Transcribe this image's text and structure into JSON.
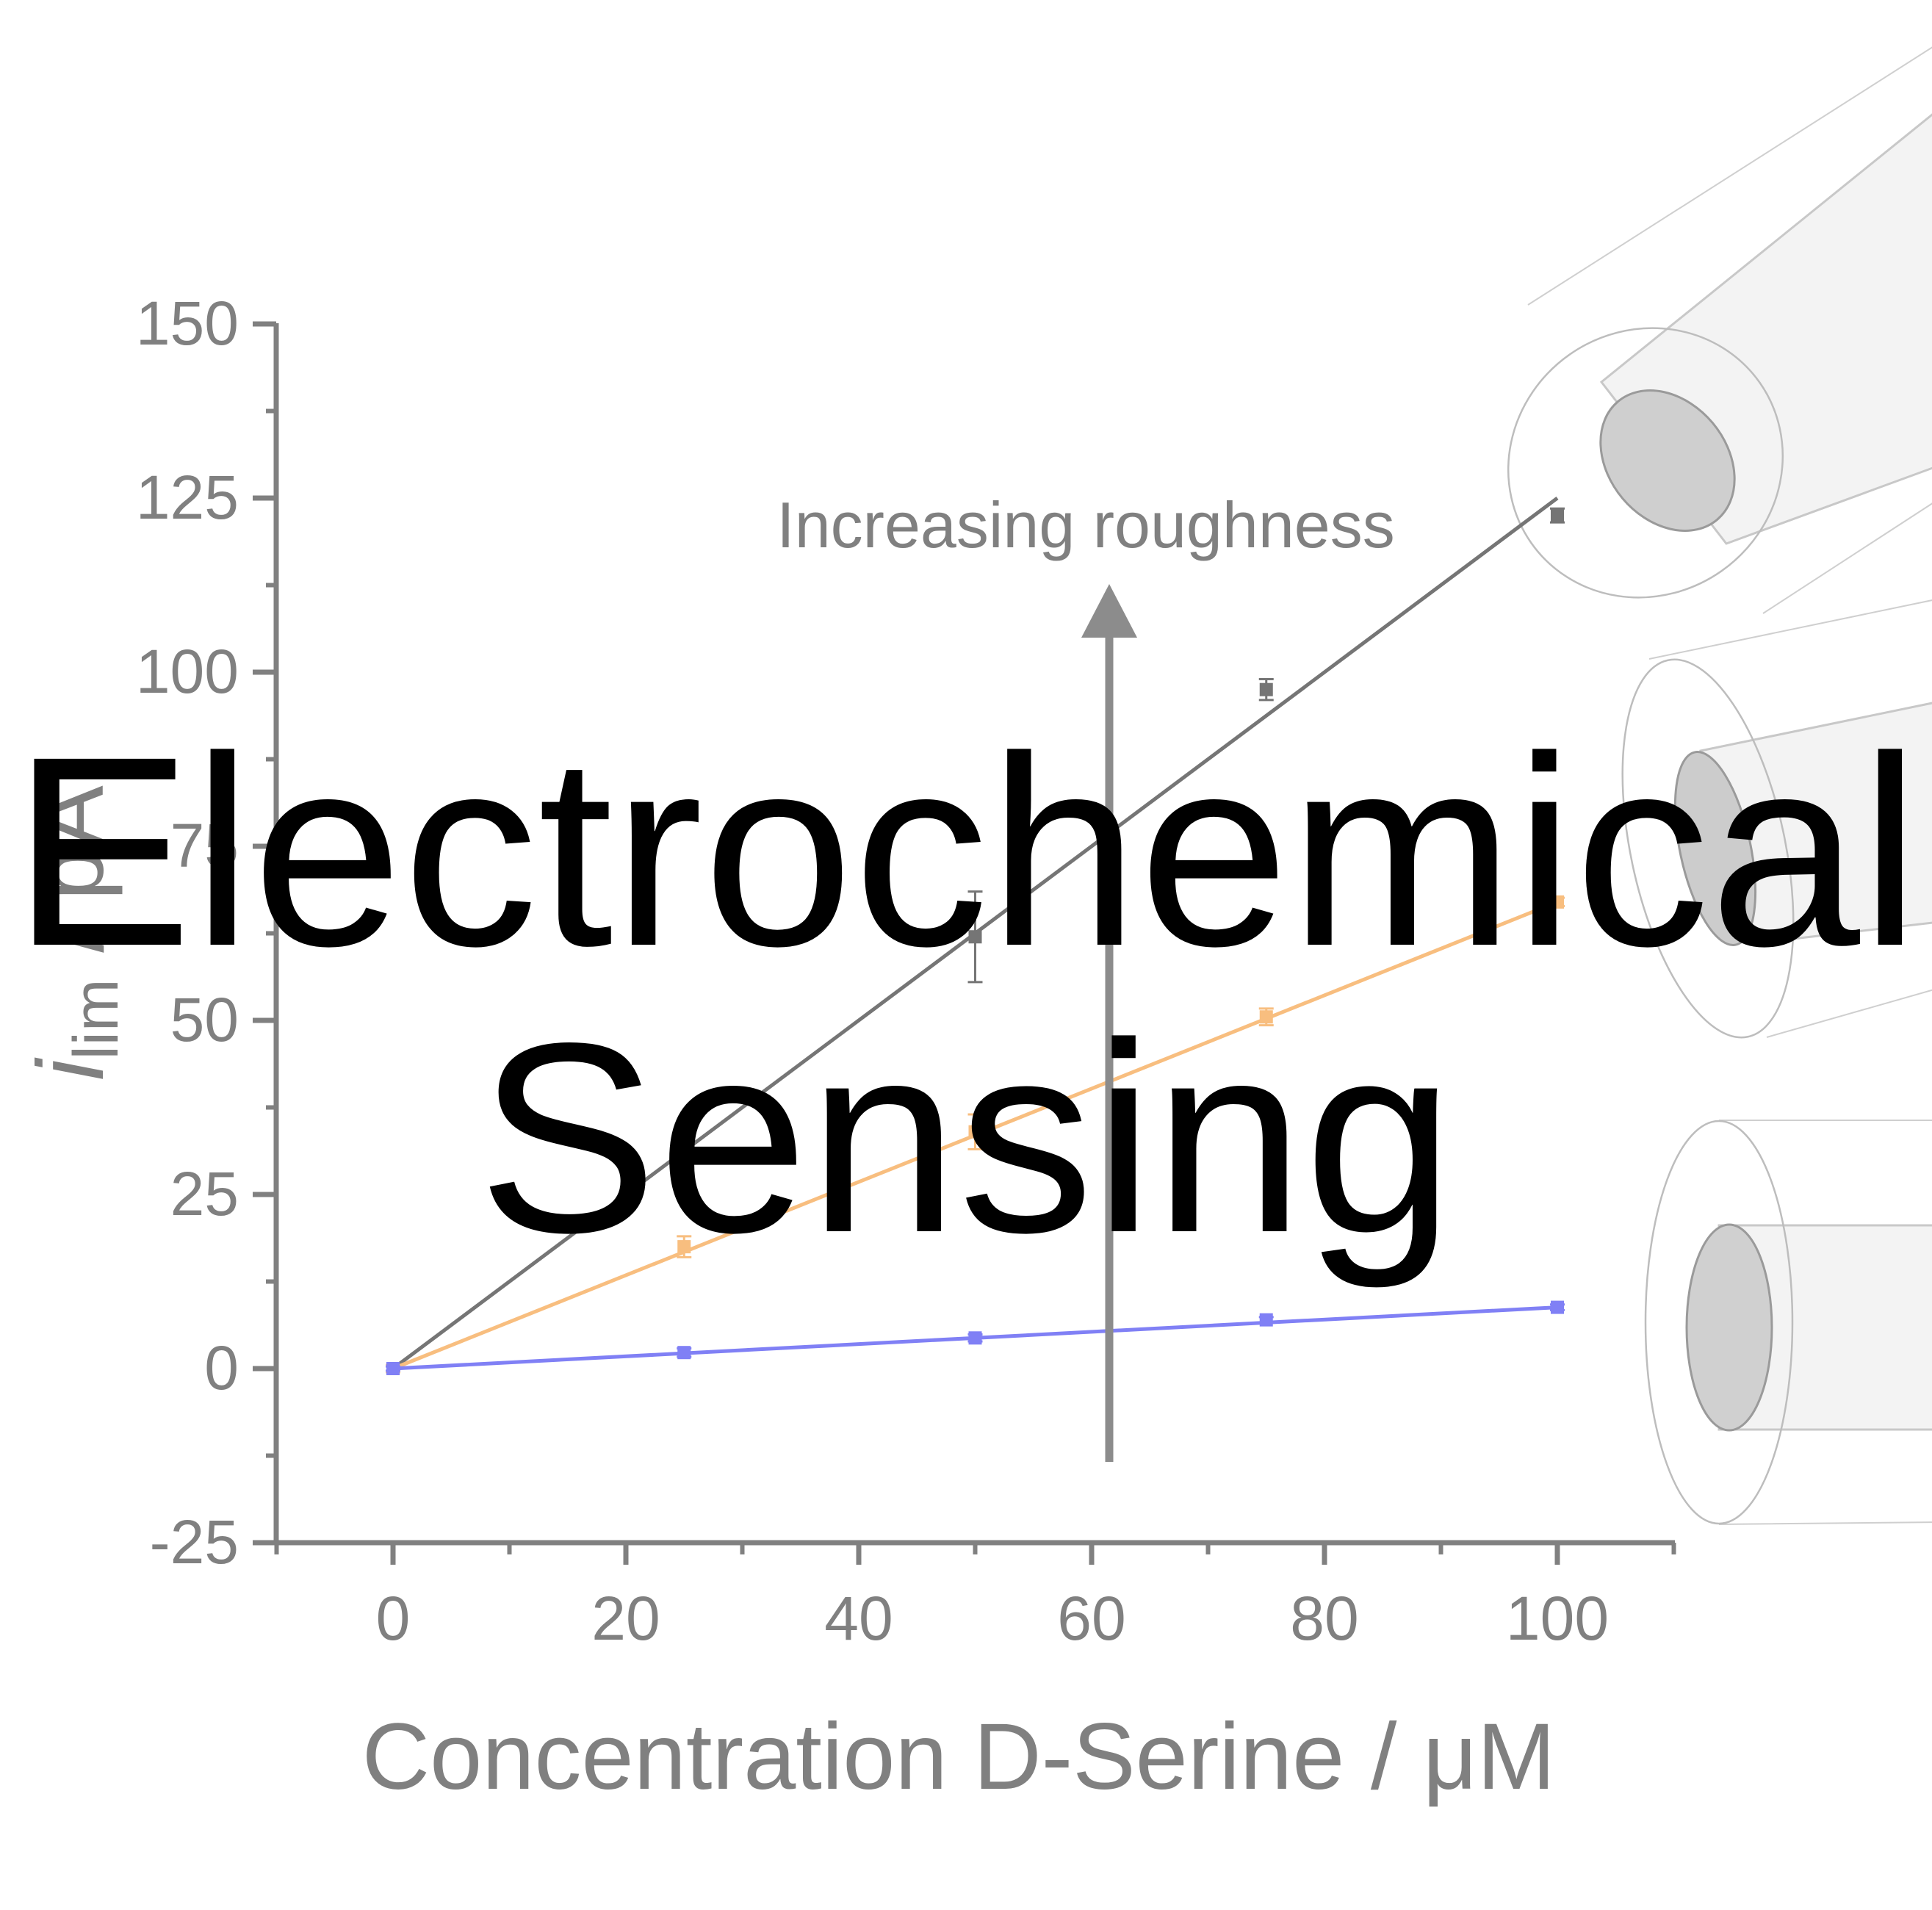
{
  "overlay_title": {
    "line1": "Electrochemical",
    "line2": "Sensing"
  },
  "annotation": {
    "text": "Increasing roughness"
  },
  "colors": {
    "axis": "#808080",
    "series_dark": "#757575",
    "series_orange": "#f8be7f",
    "series_blue": "#8080f5",
    "arrow": "#8c8c8c"
  },
  "icons": [
    "electrode-rough-icon",
    "electrode-medium-icon",
    "electrode-smooth-icon"
  ],
  "chart_data": {
    "type": "scatter",
    "xlabel": "Concentration D-Serine / μM",
    "ylabel_main": "i",
    "ylabel_sub": "lim",
    "ylabel_unit": " / pA",
    "xlim": [
      -10,
      110
    ],
    "ylim": [
      -25,
      150
    ],
    "xticks": [
      0,
      20,
      40,
      60,
      80,
      100
    ],
    "yticks": [
      -25,
      0,
      25,
      50,
      75,
      100,
      125,
      150
    ],
    "grid": false,
    "series": [
      {
        "x": [
          0,
          25,
          50,
          75,
          100
        ],
        "y": [
          0,
          33,
          62,
          97.5,
          122.5
        ],
        "err": [
          0.5,
          1.5,
          6.5,
          1.5,
          1
        ],
        "fit": [
          0,
          125
        ],
        "color": "#757575"
      },
      {
        "x": [
          0,
          25,
          50,
          75,
          100
        ],
        "y": [
          0,
          17.5,
          34,
          50.5,
          67
        ],
        "err": [
          0.5,
          1.5,
          2.5,
          1.2,
          0.6
        ],
        "fit": [
          0,
          67
        ],
        "color": "#f8be7f"
      },
      {
        "x": [
          0,
          25,
          50,
          75,
          100
        ],
        "y": [
          0,
          2.3,
          4.4,
          7,
          8.8
        ],
        "err": [
          0.3,
          0.6,
          0.5,
          0.4,
          0.4
        ],
        "fit": [
          0,
          8.8
        ],
        "color": "#8080f5"
      }
    ]
  }
}
